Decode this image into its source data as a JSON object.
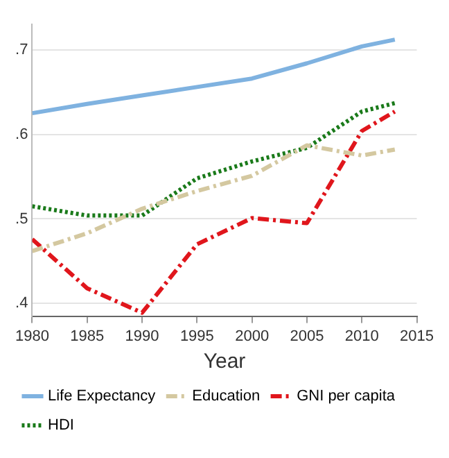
{
  "chart_data": {
    "type": "line",
    "xlabel": "Year",
    "x": [
      1980,
      1985,
      1990,
      1995,
      2000,
      2005,
      2010,
      2013
    ],
    "series": [
      {
        "name": "Life Expectancy",
        "color": "#7fb2e0",
        "line_style": "solid",
        "values": [
          0.625,
          0.636,
          0.646,
          0.656,
          0.666,
          0.684,
          0.704,
          0.712
        ]
      },
      {
        "name": "Education",
        "color": "#d4c8a0",
        "line_style": "dashed",
        "values": [
          0.462,
          0.483,
          0.512,
          0.533,
          0.551,
          0.587,
          0.575,
          0.582
        ]
      },
      {
        "name": "GNI per capita",
        "color": "#e0161c",
        "line_style": "dashed",
        "values": [
          0.476,
          0.418,
          0.389,
          0.47,
          0.501,
          0.495,
          0.604,
          0.627
        ]
      },
      {
        "name": "HDI",
        "color": "#1a7a1a",
        "line_style": "dotted",
        "values": [
          0.515,
          0.504,
          0.504,
          0.548,
          0.568,
          0.584,
          0.627,
          0.637
        ]
      }
    ],
    "xlim": [
      1980,
      2015
    ],
    "xticks": [
      1980,
      1985,
      1990,
      1995,
      2000,
      2005,
      2010,
      2015
    ],
    "ylim": [
      0.385,
      0.73
    ],
    "yticks": [
      {
        "value": 0.4,
        "label": ".4"
      },
      {
        "value": 0.5,
        "label": ".5"
      },
      {
        "value": 0.6,
        "label": ".6"
      },
      {
        "value": 0.7,
        "label": ".7"
      }
    ],
    "grid": "y",
    "legend": "bottom",
    "marker": "none"
  }
}
